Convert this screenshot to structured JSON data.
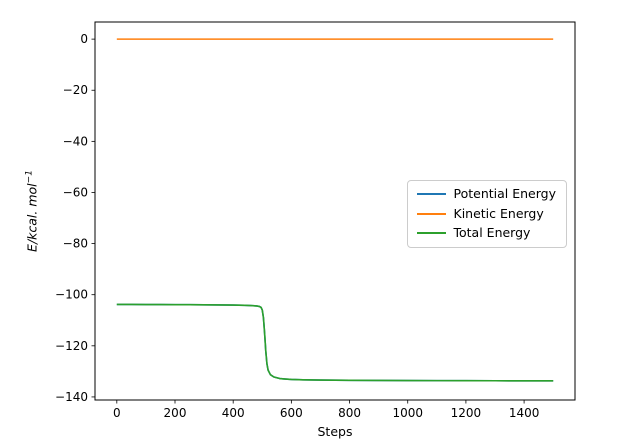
{
  "chart_data": {
    "type": "line",
    "title": "",
    "xlabel": "Steps",
    "ylabel": "E/kcal. mol⁻¹",
    "ylabel_base": "E/kcal. mol",
    "ylabel_sup": "−1",
    "xlim": [
      -75,
      1575
    ],
    "ylim": [
      -141.2,
      6.7
    ],
    "xticks": [
      0,
      200,
      400,
      600,
      800,
      1000,
      1200,
      1400
    ],
    "yticks": [
      0,
      -20,
      -40,
      -60,
      -80,
      -100,
      -120,
      -140
    ],
    "grid": false,
    "legend": {
      "position": "center right"
    },
    "series": [
      {
        "name": "Potential Energy",
        "color": "#1f77b4",
        "x": [
          0,
          50,
          100,
          150,
          200,
          250,
          300,
          350,
          400,
          440,
          460,
          480,
          490,
          496,
          500,
          504,
          508,
          512,
          516,
          520,
          528,
          540,
          560,
          580,
          600,
          640,
          700,
          800,
          900,
          1000,
          1100,
          1200,
          1300,
          1400,
          1500
        ],
        "y": [
          -103.8,
          -103.82,
          -103.85,
          -103.87,
          -103.9,
          -103.92,
          -103.95,
          -104.0,
          -104.05,
          -104.15,
          -104.25,
          -104.4,
          -104.6,
          -105.0,
          -106.0,
          -109.0,
          -115.0,
          -122.0,
          -127.0,
          -129.5,
          -131.3,
          -132.2,
          -132.8,
          -133.0,
          -133.15,
          -133.3,
          -133.4,
          -133.5,
          -133.55,
          -133.6,
          -133.62,
          -133.65,
          -133.67,
          -133.7,
          -133.7
        ]
      },
      {
        "name": "Kinetic Energy",
        "color": "#ff7f0e",
        "x": [
          0,
          1500
        ],
        "y": [
          0,
          0
        ]
      },
      {
        "name": "Total Energy",
        "color": "#2ca02c",
        "x": [
          0,
          50,
          100,
          150,
          200,
          250,
          300,
          350,
          400,
          440,
          460,
          480,
          490,
          496,
          500,
          504,
          508,
          512,
          516,
          520,
          528,
          540,
          560,
          580,
          600,
          640,
          700,
          800,
          900,
          1000,
          1100,
          1200,
          1300,
          1400,
          1500
        ],
        "y": [
          -103.8,
          -103.82,
          -103.85,
          -103.87,
          -103.9,
          -103.92,
          -103.95,
          -104.0,
          -104.05,
          -104.15,
          -104.25,
          -104.4,
          -104.6,
          -105.0,
          -106.0,
          -109.0,
          -115.0,
          -122.0,
          -127.0,
          -129.5,
          -131.3,
          -132.2,
          -132.8,
          -133.0,
          -133.15,
          -133.3,
          -133.4,
          -133.5,
          -133.55,
          -133.6,
          -133.62,
          -133.65,
          -133.67,
          -133.7,
          -133.7
        ]
      }
    ]
  }
}
